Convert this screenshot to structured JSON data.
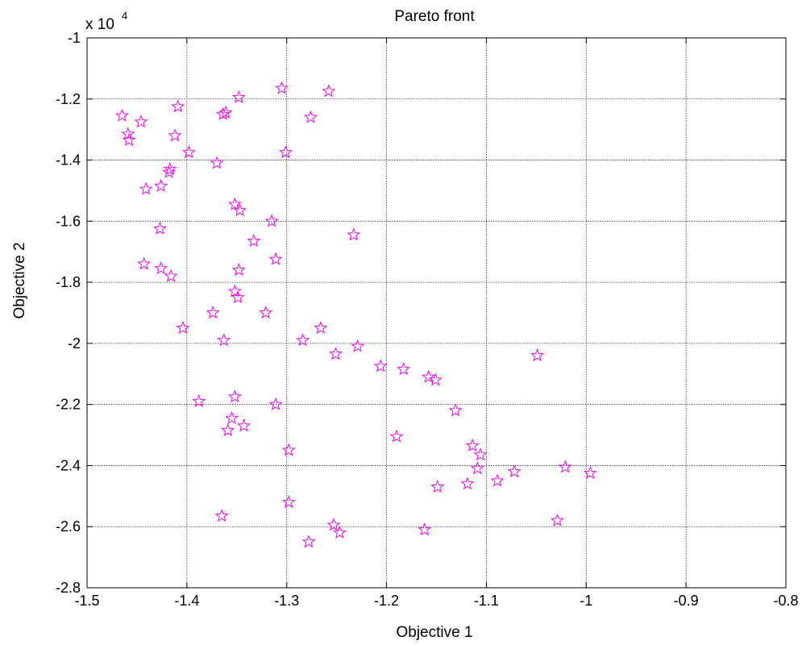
{
  "chart_data": {
    "type": "scatter",
    "title": "Pareto front",
    "xlabel": "Objective 1",
    "ylabel": "Objective 2",
    "y_scale_label": {
      "base": "x 10",
      "exponent": "4"
    },
    "xlim": [
      -1.5,
      -0.8
    ],
    "ylim": [
      -2.8,
      -1.0
    ],
    "grid": true,
    "marker": "star",
    "marker_color": "#ff00ff",
    "x_ticks": [
      -1.5,
      -1.4,
      -1.3,
      -1.2,
      -1.1,
      -1.0,
      -0.9,
      -0.8
    ],
    "x_tick_labels": [
      "-1.5",
      "-1.4",
      "-1.3",
      "-1.2",
      "-1.1",
      "-1",
      "-0.9",
      "-0.8"
    ],
    "y_ticks": [
      -1.0,
      -1.2,
      -1.4,
      -1.6,
      -1.8,
      -2.0,
      -2.2,
      -2.4,
      -2.6,
      -2.8
    ],
    "y_tick_labels": [
      "-1",
      "-1.2",
      "-1.4",
      "-1.6",
      "-1.8",
      "-2",
      "-2.2",
      "-2.4",
      "-2.6",
      "-2.8"
    ],
    "points": [
      [
        -1.465,
        -1.255
      ],
      [
        -1.459,
        -1.315
      ],
      [
        -1.458,
        -1.335
      ],
      [
        -1.446,
        -1.275
      ],
      [
        -1.409,
        -1.225
      ],
      [
        -1.412,
        -1.32
      ],
      [
        -1.398,
        -1.375
      ],
      [
        -1.417,
        -1.43
      ],
      [
        -1.418,
        -1.44
      ],
      [
        -1.441,
        -1.495
      ],
      [
        -1.426,
        -1.485
      ],
      [
        -1.427,
        -1.625
      ],
      [
        -1.443,
        -1.74
      ],
      [
        -1.426,
        -1.755
      ],
      [
        -1.416,
        -1.78
      ],
      [
        -1.404,
        -1.95
      ],
      [
        -1.388,
        -2.19
      ],
      [
        -1.374,
        -1.9
      ],
      [
        -1.37,
        -1.41
      ],
      [
        -1.364,
        -1.25
      ],
      [
        -1.361,
        -1.245
      ],
      [
        -1.363,
        -1.99
      ],
      [
        -1.359,
        -2.285
      ],
      [
        -1.355,
        -2.245
      ],
      [
        -1.352,
        -2.175
      ],
      [
        -1.365,
        -2.565
      ],
      [
        -1.352,
        -1.545
      ],
      [
        -1.347,
        -1.565
      ],
      [
        -1.352,
        -1.83
      ],
      [
        -1.349,
        -1.85
      ],
      [
        -1.348,
        -1.76
      ],
      [
        -1.343,
        -2.27
      ],
      [
        -1.348,
        -1.195
      ],
      [
        -1.305,
        -1.165
      ],
      [
        -1.301,
        -1.375
      ],
      [
        -1.276,
        -1.26
      ],
      [
        -1.258,
        -1.175
      ],
      [
        -1.315,
        -1.6
      ],
      [
        -1.333,
        -1.665
      ],
      [
        -1.311,
        -1.725
      ],
      [
        -1.321,
        -1.9
      ],
      [
        -1.311,
        -2.2
      ],
      [
        -1.298,
        -2.35
      ],
      [
        -1.298,
        -2.52
      ],
      [
        -1.284,
        -1.99
      ],
      [
        -1.266,
        -1.95
      ],
      [
        -1.251,
        -2.035
      ],
      [
        -1.229,
        -2.01
      ],
      [
        -1.233,
        -1.645
      ],
      [
        -1.206,
        -2.075
      ],
      [
        -1.183,
        -2.085
      ],
      [
        -1.19,
        -2.305
      ],
      [
        -1.158,
        -2.11
      ],
      [
        -1.151,
        -2.12
      ],
      [
        -1.131,
        -2.22
      ],
      [
        -1.114,
        -2.335
      ],
      [
        -1.106,
        -2.365
      ],
      [
        -1.109,
        -2.41
      ],
      [
        -1.119,
        -2.46
      ],
      [
        -1.149,
        -2.47
      ],
      [
        -1.089,
        -2.45
      ],
      [
        -1.072,
        -2.42
      ],
      [
        -1.049,
        -2.04
      ],
      [
        -1.021,
        -2.405
      ],
      [
        -0.996,
        -2.425
      ],
      [
        -1.029,
        -2.58
      ],
      [
        -1.162,
        -2.61
      ],
      [
        -1.253,
        -2.595
      ],
      [
        -1.247,
        -2.62
      ],
      [
        -1.278,
        -2.65
      ]
    ]
  }
}
